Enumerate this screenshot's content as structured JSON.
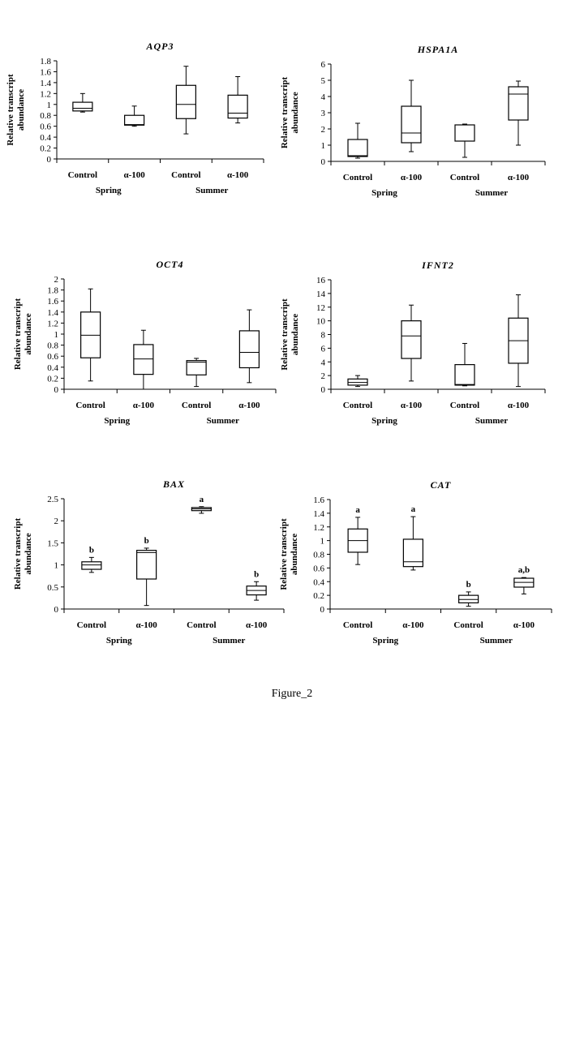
{
  "figure_caption": "Figure_2",
  "chart_data": [
    {
      "type": "boxplot",
      "title": "AQP3",
      "ylabel": "Relative transcript abundance",
      "ylim": [
        0,
        1.8
      ],
      "yticks": [
        "0",
        "0.2",
        "0.4",
        "0.6",
        "0.8",
        "1",
        "1.2",
        "1.4",
        "1.6",
        "1.8"
      ],
      "categories": [
        "Control",
        "α-100",
        "Control",
        "α-100"
      ],
      "groups": [
        "Spring",
        "Summer"
      ],
      "boxes": [
        {
          "min": 0.86,
          "q1": 0.88,
          "median": 0.93,
          "q3": 1.04,
          "max": 1.2,
          "letter": ""
        },
        {
          "min": 0.6,
          "q1": 0.62,
          "median": 0.63,
          "q3": 0.8,
          "max": 0.97,
          "letter": ""
        },
        {
          "min": 0.46,
          "q1": 0.74,
          "median": 1.0,
          "q3": 1.35,
          "max": 1.7,
          "letter": ""
        },
        {
          "min": 0.66,
          "q1": 0.75,
          "median": 0.84,
          "q3": 1.17,
          "max": 1.51,
          "letter": ""
        }
      ]
    },
    {
      "type": "boxplot",
      "title": "HSPA1A",
      "ylabel": "Relative transcript abundance",
      "ylim": [
        0,
        6
      ],
      "yticks": [
        "0",
        "1",
        "2",
        "3",
        "4",
        "5",
        "6"
      ],
      "categories": [
        "Control",
        "α-100",
        "Control",
        "α-100"
      ],
      "groups": [
        "Spring",
        "Summer"
      ],
      "boxes": [
        {
          "min": 0.2,
          "q1": 0.3,
          "median": 0.35,
          "q3": 1.35,
          "max": 2.35,
          "letter": ""
        },
        {
          "min": 0.6,
          "q1": 1.15,
          "median": 1.75,
          "q3": 3.4,
          "max": 5.0,
          "letter": ""
        },
        {
          "min": 0.25,
          "q1": 1.25,
          "median": 2.25,
          "q3": 2.25,
          "max": 2.3,
          "letter": ""
        },
        {
          "min": 1.0,
          "q1": 2.55,
          "median": 4.15,
          "q3": 4.6,
          "max": 4.95,
          "letter": ""
        }
      ]
    },
    {
      "type": "boxplot",
      "title": "OCT4",
      "ylabel": "Relative transcript abundance",
      "ylim": [
        0,
        2
      ],
      "yticks": [
        "0",
        "0.2",
        "0.4",
        "0.6",
        "0.8",
        "1",
        "1.2",
        "1.4",
        "1.6",
        "1.8",
        "2"
      ],
      "categories": [
        "Control",
        "α-100",
        "Control",
        "α-100"
      ],
      "groups": [
        "Spring",
        "Summer"
      ],
      "boxes": [
        {
          "min": 0.15,
          "q1": 0.57,
          "median": 0.98,
          "q3": 1.4,
          "max": 1.82,
          "letter": ""
        },
        {
          "min": 0.0,
          "q1": 0.27,
          "median": 0.55,
          "q3": 0.81,
          "max": 1.07,
          "letter": ""
        },
        {
          "min": 0.05,
          "q1": 0.26,
          "median": 0.49,
          "q3": 0.52,
          "max": 0.56,
          "letter": ""
        },
        {
          "min": 0.12,
          "q1": 0.39,
          "median": 0.67,
          "q3": 1.06,
          "max": 1.44,
          "letter": ""
        }
      ]
    },
    {
      "type": "boxplot",
      "title": "IFNT2",
      "ylabel": "Relative transcript abundance",
      "ylim": [
        0,
        16
      ],
      "yticks": [
        "0",
        "2",
        "4",
        "6",
        "8",
        "10",
        "12",
        "14",
        "16"
      ],
      "categories": [
        "Control",
        "α-100",
        "Control",
        "α-100"
      ],
      "groups": [
        "Spring",
        "Summer"
      ],
      "boxes": [
        {
          "min": 0.4,
          "q1": 0.6,
          "median": 1.0,
          "q3": 1.5,
          "max": 2.0,
          "letter": ""
        },
        {
          "min": 1.2,
          "q1": 4.5,
          "median": 7.8,
          "q3": 10.0,
          "max": 12.3,
          "letter": ""
        },
        {
          "min": 0.5,
          "q1": 0.6,
          "median": 0.7,
          "q3": 3.6,
          "max": 6.7,
          "letter": ""
        },
        {
          "min": 0.4,
          "q1": 3.8,
          "median": 7.1,
          "q3": 10.4,
          "max": 13.8,
          "letter": ""
        }
      ]
    },
    {
      "type": "boxplot",
      "title": "BAX",
      "ylabel": "Relative transcript abundance",
      "ylim": [
        0,
        2.5
      ],
      "yticks": [
        "0",
        "0.5",
        "1",
        "1.5",
        "2",
        "2.5"
      ],
      "categories": [
        "Control",
        "α-100",
        "Control",
        "α-100"
      ],
      "groups": [
        "Spring",
        "Summer"
      ],
      "boxes": [
        {
          "min": 0.83,
          "q1": 0.9,
          "median": 1.0,
          "q3": 1.07,
          "max": 1.17,
          "letter": "b"
        },
        {
          "min": 0.08,
          "q1": 0.68,
          "median": 1.28,
          "q3": 1.33,
          "max": 1.38,
          "letter": "b"
        },
        {
          "min": 2.17,
          "q1": 2.23,
          "median": 2.27,
          "q3": 2.3,
          "max": 2.32,
          "letter": "a"
        },
        {
          "min": 0.2,
          "q1": 0.32,
          "median": 0.42,
          "q3": 0.52,
          "max": 0.62,
          "letter": "b"
        }
      ]
    },
    {
      "type": "boxplot",
      "title": "CAT",
      "ylabel": "Relative transcript abundance",
      "ylim": [
        0,
        1.6
      ],
      "yticks": [
        "0",
        "0.2",
        "0.4",
        "0.6",
        "0.8",
        "1",
        "1.2",
        "1.4",
        "1.6"
      ],
      "categories": [
        "Control",
        "α-100",
        "Control",
        "α-100"
      ],
      "groups": [
        "Spring",
        "Summer"
      ],
      "boxes": [
        {
          "min": 0.65,
          "q1": 0.83,
          "median": 1.0,
          "q3": 1.17,
          "max": 1.34,
          "letter": "a"
        },
        {
          "min": 0.57,
          "q1": 0.62,
          "median": 0.69,
          "q3": 1.02,
          "max": 1.35,
          "letter": "a"
        },
        {
          "min": 0.04,
          "q1": 0.09,
          "median": 0.14,
          "q3": 0.2,
          "max": 0.25,
          "letter": "b"
        },
        {
          "min": 0.22,
          "q1": 0.32,
          "median": 0.39,
          "q3": 0.45,
          "max": 0.46,
          "letter": "a,b"
        }
      ]
    }
  ]
}
